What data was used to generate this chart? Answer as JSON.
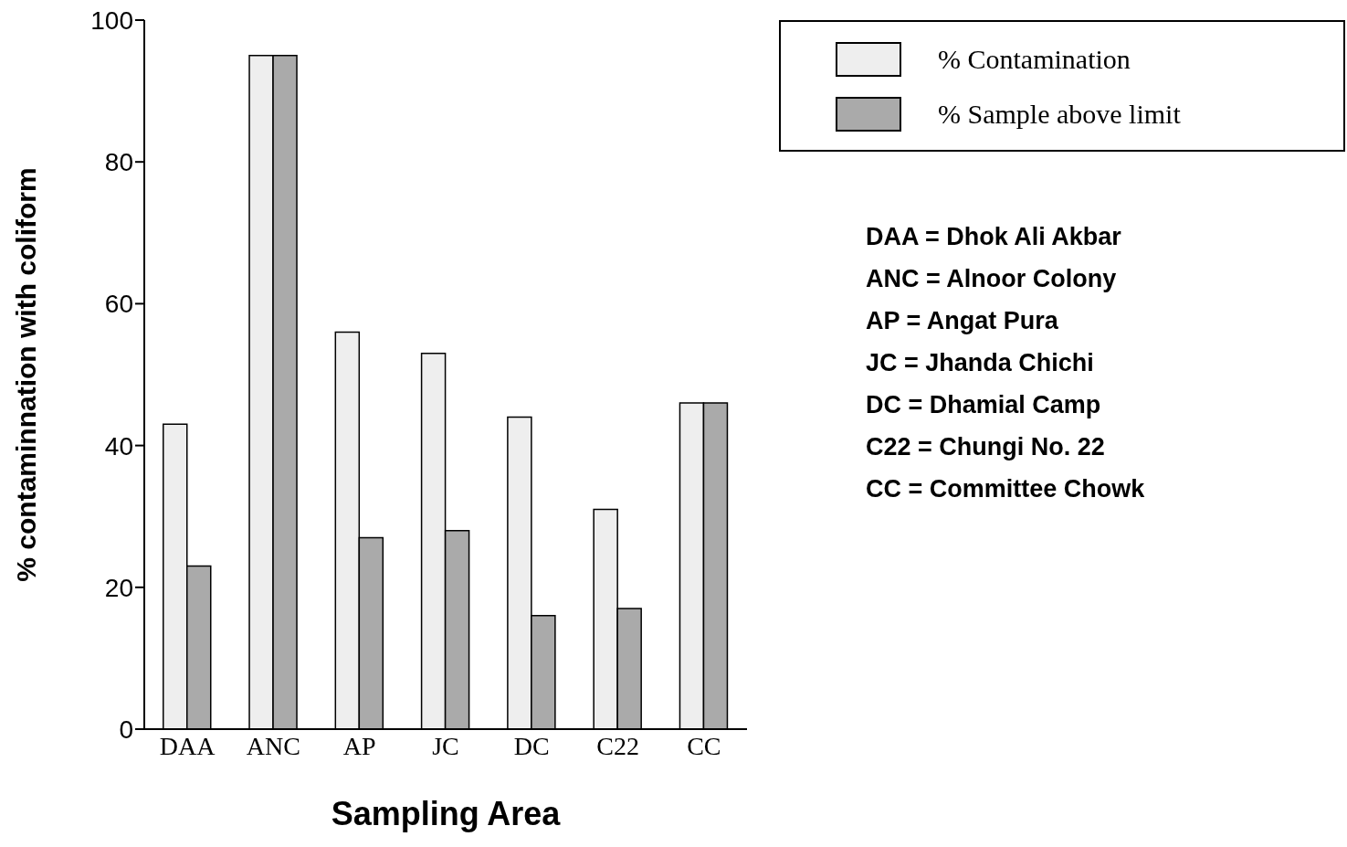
{
  "chart_data": {
    "type": "bar",
    "xlabel": "Sampling Area",
    "ylabel": "% contaminnation with coliform",
    "categories": [
      "DAA",
      "ANC",
      "AP",
      "JC",
      "DC",
      "C22",
      "CC"
    ],
    "series": [
      {
        "name": "% Contamination",
        "color": "#eeeeee",
        "values": [
          43,
          95,
          56,
          53,
          44,
          31,
          46
        ]
      },
      {
        "name": "% Sample above limit",
        "color": "#aaaaaa",
        "values": [
          23,
          95,
          27,
          28,
          16,
          17,
          46
        ]
      }
    ],
    "ylim": [
      0,
      100
    ],
    "yticks": [
      0,
      20,
      40,
      60,
      80,
      100
    ],
    "grid": false,
    "legend": "top right",
    "annotations": [
      "DAA = Dhok Ali Akbar",
      "ANC = Alnoor Colony",
      "AP = Angat Pura",
      "JC = Jhanda Chichi",
      "DC = Dhamial Camp",
      "C22 = Chungi No. 22",
      "CC = Committee Chowk"
    ]
  }
}
